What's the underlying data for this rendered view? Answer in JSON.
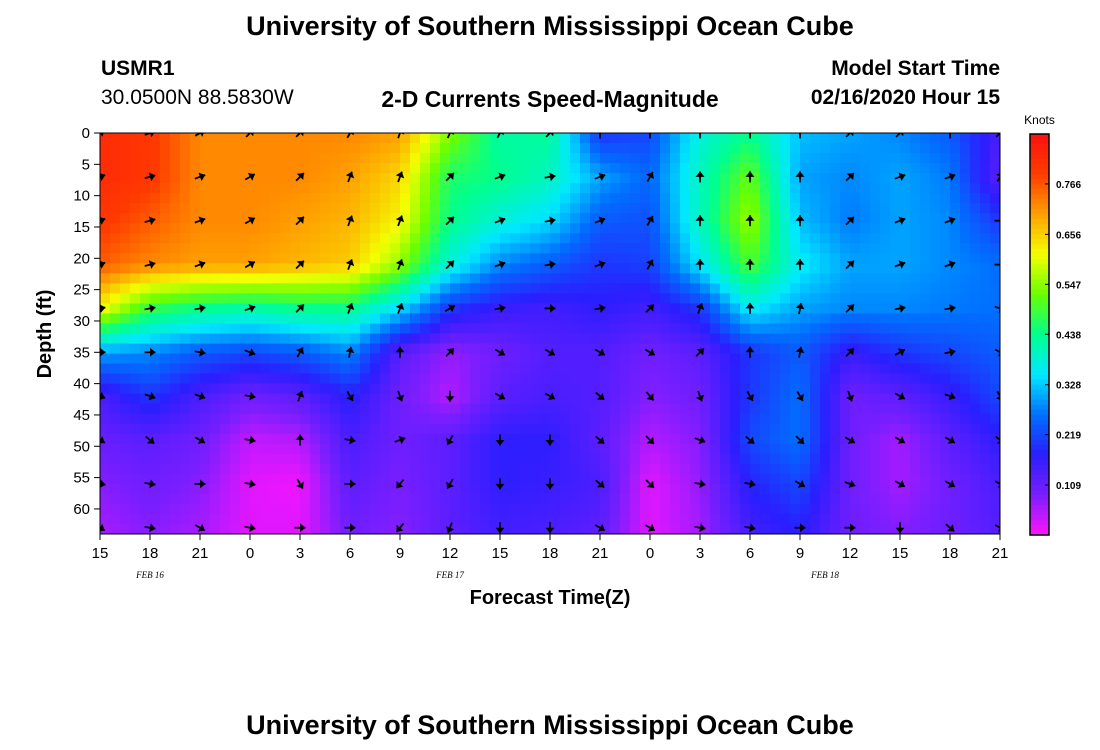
{
  "header": {
    "title_top": "University of Southern Mississippi Ocean Cube",
    "title_bottom": "University of Southern Mississippi Ocean Cube",
    "station": "USMR1",
    "coords": "30.0500N 88.5830W",
    "subtitle": "2-D Currents Speed-Magnitude",
    "model_start_label": "Model Start Time",
    "model_start_value": "02/16/2020 Hour 15"
  },
  "colors": {
    "ramp": [
      "#ff14ff",
      "#7a1eff",
      "#2a1eff",
      "#0070ff",
      "#00e8ff",
      "#00ff90",
      "#6aff00",
      "#f4ff00",
      "#ffa000",
      "#ff3c00",
      "#ff1010"
    ]
  },
  "chart_data": {
    "type": "heatmap",
    "xlabel": "Forecast Time(Z)",
    "ylabel": "Depth (ft)",
    "x_tick_labels": [
      "15",
      "18",
      "21",
      "0",
      "3",
      "6",
      "9",
      "12",
      "15",
      "18",
      "21",
      "0",
      "3",
      "6",
      "9",
      "12",
      "15",
      "18",
      "21"
    ],
    "x_hours": [
      0,
      3,
      6,
      9,
      12,
      15,
      18,
      21,
      24,
      27,
      30,
      33,
      36,
      39,
      42,
      45,
      48,
      51,
      54
    ],
    "xlim": [
      0,
      54
    ],
    "date_labels": [
      {
        "label": "FEB 16",
        "hour": 3
      },
      {
        "label": "FEB 17",
        "hour": 21
      },
      {
        "label": "FEB 18",
        "hour": 43.5
      }
    ],
    "y_tick_labels": [
      "0",
      "5",
      "10",
      "15",
      "20",
      "25",
      "30",
      "35",
      "40",
      "45",
      "50",
      "55",
      "60"
    ],
    "y_values": [
      0,
      5,
      10,
      15,
      20,
      25,
      30,
      35,
      40,
      45,
      50,
      55,
      60
    ],
    "ylim": [
      0,
      64
    ],
    "colorbar": {
      "unit": "Knots",
      "tick_labels": [
        "0.766",
        "0.656",
        "0.547",
        "0.438",
        "0.328",
        "0.219",
        "0.109"
      ],
      "tick_values": [
        0.766,
        0.656,
        0.547,
        0.438,
        0.328,
        0.219,
        0.109
      ],
      "range": [
        0.0,
        0.875
      ]
    },
    "grid_hours": [
      0,
      3,
      6,
      9,
      12,
      15,
      18,
      21,
      24,
      27,
      30,
      33,
      36,
      39,
      42,
      45,
      48,
      51,
      54
    ],
    "grid_depths": [
      0,
      7,
      14,
      21,
      28,
      35,
      42,
      49,
      56,
      63
    ],
    "speed": [
      [
        0.82,
        0.8,
        0.72,
        0.72,
        0.72,
        0.72,
        0.7,
        0.54,
        0.42,
        0.43,
        0.2,
        0.22,
        0.38,
        0.44,
        0.32,
        0.3,
        0.28,
        0.24,
        0.14
      ],
      [
        0.82,
        0.8,
        0.72,
        0.72,
        0.72,
        0.7,
        0.65,
        0.46,
        0.44,
        0.4,
        0.3,
        0.25,
        0.4,
        0.52,
        0.3,
        0.28,
        0.3,
        0.27,
        0.12
      ],
      [
        0.8,
        0.76,
        0.72,
        0.72,
        0.7,
        0.68,
        0.62,
        0.44,
        0.38,
        0.34,
        0.24,
        0.23,
        0.4,
        0.56,
        0.32,
        0.27,
        0.3,
        0.28,
        0.2
      ],
      [
        0.76,
        0.72,
        0.7,
        0.7,
        0.68,
        0.66,
        0.55,
        0.38,
        0.28,
        0.24,
        0.2,
        0.21,
        0.35,
        0.5,
        0.36,
        0.3,
        0.3,
        0.28,
        0.26
      ],
      [
        0.62,
        0.48,
        0.44,
        0.42,
        0.44,
        0.44,
        0.34,
        0.2,
        0.16,
        0.15,
        0.17,
        0.15,
        0.2,
        0.36,
        0.3,
        0.28,
        0.28,
        0.27,
        0.26
      ],
      [
        0.3,
        0.28,
        0.24,
        0.22,
        0.24,
        0.28,
        0.12,
        0.07,
        0.1,
        0.13,
        0.13,
        0.1,
        0.12,
        0.2,
        0.24,
        0.16,
        0.2,
        0.22,
        0.24
      ],
      [
        0.14,
        0.2,
        0.14,
        0.1,
        0.12,
        0.18,
        0.1,
        0.05,
        0.12,
        0.14,
        0.13,
        0.08,
        0.1,
        0.2,
        0.26,
        0.1,
        0.12,
        0.16,
        0.22
      ],
      [
        0.11,
        0.12,
        0.1,
        0.04,
        0.05,
        0.14,
        0.1,
        0.12,
        0.17,
        0.17,
        0.12,
        0.05,
        0.08,
        0.22,
        0.26,
        0.1,
        0.06,
        0.12,
        0.17
      ],
      [
        0.08,
        0.1,
        0.08,
        0.02,
        0.01,
        0.12,
        0.09,
        0.12,
        0.17,
        0.16,
        0.14,
        0.02,
        0.07,
        0.18,
        0.22,
        0.1,
        0.06,
        0.1,
        0.14
      ],
      [
        0.06,
        0.08,
        0.06,
        0.02,
        0.02,
        0.1,
        0.08,
        0.12,
        0.15,
        0.14,
        0.12,
        0.02,
        0.06,
        0.15,
        0.18,
        0.1,
        0.08,
        0.1,
        0.13
      ]
    ],
    "direction": [
      [
        60,
        70,
        60,
        45,
        45,
        30,
        20,
        25,
        30,
        45,
        0,
        0,
        0,
        0,
        0,
        45,
        45,
        0,
        45
      ],
      [
        70,
        75,
        70,
        60,
        45,
        20,
        20,
        45,
        70,
        80,
        70,
        30,
        0,
        0,
        0,
        45,
        70,
        70,
        30
      ],
      [
        70,
        75,
        70,
        60,
        45,
        20,
        20,
        45,
        70,
        80,
        70,
        30,
        0,
        0,
        0,
        45,
        70,
        70,
        90
      ],
      [
        70,
        75,
        70,
        60,
        45,
        20,
        20,
        45,
        70,
        80,
        70,
        30,
        0,
        0,
        0,
        45,
        70,
        70,
        90
      ],
      [
        80,
        80,
        80,
        70,
        45,
        20,
        20,
        60,
        80,
        90,
        80,
        45,
        20,
        0,
        10,
        45,
        80,
        80,
        110
      ],
      [
        90,
        90,
        100,
        110,
        30,
        10,
        0,
        45,
        120,
        120,
        120,
        120,
        45,
        0,
        10,
        45,
        60,
        80,
        120
      ],
      [
        110,
        110,
        110,
        100,
        20,
        150,
        160,
        180,
        120,
        120,
        130,
        140,
        160,
        150,
        150,
        160,
        120,
        110,
        150
      ],
      [
        120,
        130,
        120,
        100,
        0,
        100,
        70,
        210,
        180,
        180,
        130,
        135,
        110,
        130,
        135,
        120,
        120,
        120,
        130
      ],
      [
        100,
        100,
        90,
        100,
        150,
        90,
        220,
        210,
        180,
        180,
        130,
        135,
        100,
        100,
        120,
        110,
        120,
        120,
        120
      ],
      [
        120,
        100,
        120,
        100,
        90,
        90,
        220,
        200,
        180,
        180,
        120,
        120,
        100,
        100,
        90,
        90,
        180,
        130,
        120
      ]
    ]
  }
}
